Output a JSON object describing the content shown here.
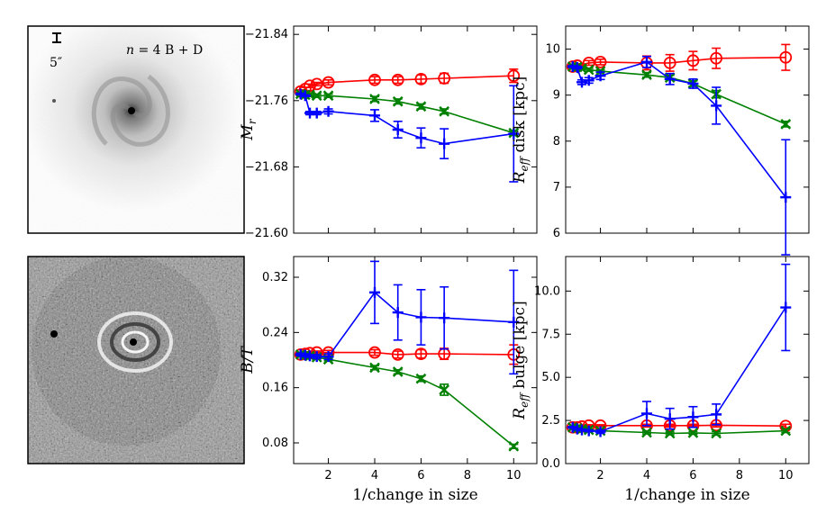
{
  "figure": {
    "image_top": {
      "model_label_prefix": "n",
      "model_label_suffix": " = 4 B + D",
      "scale_label": "5″"
    },
    "image_bottom": {}
  },
  "colors": {
    "red": "#ff0000",
    "green": "#008000",
    "blue": "#0000ff"
  },
  "chart_data": [
    {
      "id": "mr",
      "type": "line",
      "title": "",
      "xlabel": "",
      "ylabel": "M_r",
      "ylabel_base": "M",
      "ylabel_sub": "r",
      "ylabel_rest": "",
      "xlim": [
        0.5,
        11
      ],
      "ylim": [
        -21.6,
        -21.85
      ],
      "yticks": [
        -21.6,
        -21.68,
        -21.76,
        -21.84
      ],
      "ytick_labels": [
        "−21.60",
        "−21.68",
        "−21.76",
        "−21.84"
      ],
      "xticks": [
        2,
        4,
        6,
        8,
        10
      ],
      "xtick_labels": [
        "",
        "",
        "",
        "",
        ""
      ],
      "series": [
        {
          "name": "red",
          "marker": "circle",
          "color": "#ff0000",
          "x": [
            0.8,
            1.0,
            1.2,
            1.5,
            2,
            4,
            5,
            6,
            7,
            10
          ],
          "y": [
            -21.771,
            -21.774,
            -21.778,
            -21.78,
            -21.782,
            -21.785,
            -21.785,
            -21.786,
            -21.787,
            -21.79
          ],
          "err": [
            0.002,
            0.002,
            0.002,
            0.002,
            0.003,
            0.004,
            0.004,
            0.005,
            0.006,
            0.008
          ]
        },
        {
          "name": "green",
          "marker": "x",
          "color": "#008000",
          "x": [
            0.8,
            1.0,
            1.2,
            1.5,
            2,
            4,
            5,
            6,
            7,
            10
          ],
          "y": [
            -21.768,
            -21.767,
            -21.767,
            -21.766,
            -21.766,
            -21.762,
            -21.759,
            -21.753,
            -21.747,
            -21.721
          ],
          "err": [
            0.002,
            0.002,
            0.002,
            0.002,
            0.002,
            0.003,
            0.003,
            0.003,
            0.003,
            0.003
          ]
        },
        {
          "name": "blue",
          "marker": "plus",
          "color": "#0000ff",
          "x": [
            0.8,
            1.0,
            1.2,
            1.5,
            2,
            4,
            5,
            6,
            7,
            10
          ],
          "y": [
            -21.768,
            -21.766,
            -21.745,
            -21.745,
            -21.747,
            -21.742,
            -21.725,
            -21.715,
            -21.708,
            -21.72
          ],
          "err": [
            0.001,
            0.001,
            0.002,
            0.002,
            0.003,
            0.007,
            0.01,
            0.012,
            0.018,
            0.058
          ]
        }
      ]
    },
    {
      "id": "reff_disk",
      "type": "line",
      "title": "",
      "xlabel": "",
      "ylabel": "R_eff disk [kpc]",
      "ylabel_base": "R",
      "ylabel_sub": "eff",
      "ylabel_rest": " disk [kpc]",
      "xlim": [
        0.5,
        11
      ],
      "ylim": [
        6,
        10.5
      ],
      "yticks": [
        6,
        7,
        8,
        9,
        10
      ],
      "ytick_labels": [
        "6",
        "7",
        "8",
        "9",
        "10"
      ],
      "xticks": [
        2,
        4,
        6,
        8,
        10
      ],
      "xtick_labels": [
        "",
        "",
        "",
        "",
        ""
      ],
      "series": [
        {
          "name": "red",
          "marker": "circle",
          "color": "#ff0000",
          "x": [
            0.8,
            1.0,
            1.5,
            2,
            4,
            5,
            6,
            7,
            10
          ],
          "y": [
            9.62,
            9.64,
            9.7,
            9.72,
            9.7,
            9.7,
            9.75,
            9.8,
            9.82
          ],
          "err": [
            0.03,
            0.04,
            0.05,
            0.06,
            0.15,
            0.18,
            0.2,
            0.22,
            0.28
          ]
        },
        {
          "name": "green",
          "marker": "x",
          "color": "#008000",
          "x": [
            0.8,
            1.0,
            1.2,
            1.5,
            2,
            4,
            5,
            6,
            7,
            10
          ],
          "y": [
            9.62,
            9.61,
            9.58,
            9.55,
            9.52,
            9.44,
            9.38,
            9.25,
            9.02,
            8.37
          ],
          "err": [
            0.02,
            0.02,
            0.02,
            0.03,
            0.03,
            0.05,
            0.05,
            0.06,
            0.08,
            0.06
          ]
        },
        {
          "name": "blue",
          "marker": "plus",
          "color": "#0000ff",
          "x": [
            0.8,
            1.0,
            1.2,
            1.5,
            2,
            4,
            5,
            6,
            7,
            10
          ],
          "y": [
            9.62,
            9.6,
            9.28,
            9.32,
            9.42,
            9.72,
            9.35,
            9.25,
            8.77,
            6.78
          ],
          "err": [
            0.02,
            0.03,
            0.05,
            0.06,
            0.08,
            0.12,
            0.12,
            0.1,
            0.4,
            1.25
          ]
        }
      ]
    },
    {
      "id": "bt",
      "type": "line",
      "title": "",
      "xlabel": "1/change in size",
      "ylabel": "B/T",
      "ylabel_base": "B/T",
      "ylabel_sub": "",
      "ylabel_rest": "",
      "xlim": [
        0.5,
        11
      ],
      "ylim": [
        0.05,
        0.35
      ],
      "yticks": [
        0.08,
        0.16,
        0.24,
        0.32
      ],
      "ytick_labels": [
        "0.08",
        "0.16",
        "0.24",
        "0.32"
      ],
      "xticks": [
        2,
        4,
        6,
        8,
        10
      ],
      "xtick_labels": [
        "2",
        "4",
        "6",
        "8",
        "10"
      ],
      "series": [
        {
          "name": "red",
          "marker": "circle",
          "color": "#ff0000",
          "x": [
            0.8,
            1.0,
            1.2,
            1.5,
            2,
            4,
            5,
            6,
            7,
            10
          ],
          "y": [
            0.208,
            0.209,
            0.21,
            0.211,
            0.211,
            0.211,
            0.208,
            0.209,
            0.209,
            0.208
          ],
          "err": [
            0.002,
            0.002,
            0.002,
            0.002,
            0.003,
            0.004,
            0.005,
            0.006,
            0.008,
            0.014
          ]
        },
        {
          "name": "green",
          "marker": "x",
          "color": "#008000",
          "x": [
            0.8,
            1.0,
            1.2,
            1.5,
            2,
            4,
            5,
            6,
            7,
            10
          ],
          "y": [
            0.208,
            0.207,
            0.206,
            0.204,
            0.201,
            0.189,
            0.183,
            0.173,
            0.157,
            0.075
          ],
          "err": [
            0.002,
            0.002,
            0.002,
            0.002,
            0.002,
            0.003,
            0.003,
            0.004,
            0.008,
            0.003
          ]
        },
        {
          "name": "blue",
          "marker": "plus",
          "color": "#0000ff",
          "x": [
            0.8,
            1.0,
            1.2,
            1.5,
            2,
            4,
            5,
            6,
            7,
            10
          ],
          "y": [
            0.208,
            0.207,
            0.206,
            0.205,
            0.205,
            0.298,
            0.269,
            0.262,
            0.261,
            0.255
          ],
          "err": [
            0.002,
            0.002,
            0.002,
            0.003,
            0.004,
            0.045,
            0.04,
            0.04,
            0.045,
            0.075
          ]
        }
      ]
    },
    {
      "id": "reff_bulge",
      "type": "line",
      "title": "",
      "xlabel": "1/change in size",
      "ylabel": "R_eff bulge [kpc]",
      "ylabel_base": "R",
      "ylabel_sub": "eff",
      "ylabel_rest": " bulge [kpc]",
      "xlim": [
        0.5,
        11
      ],
      "ylim": [
        0,
        12
      ],
      "yticks": [
        0.0,
        2.5,
        5.0,
        7.5,
        10.0
      ],
      "ytick_labels": [
        "0.0",
        "2.5",
        "5.0",
        "7.5",
        "10.0"
      ],
      "xticks": [
        2,
        4,
        6,
        8,
        10
      ],
      "xtick_labels": [
        "2",
        "4",
        "6",
        "8",
        "10"
      ],
      "series": [
        {
          "name": "red",
          "marker": "circle",
          "color": "#ff0000",
          "x": [
            0.8,
            1.0,
            1.2,
            1.5,
            2,
            4,
            5,
            6,
            7,
            10
          ],
          "y": [
            2.1,
            2.1,
            2.15,
            2.2,
            2.2,
            2.2,
            2.2,
            2.2,
            2.22,
            2.18
          ],
          "err": [
            0.05,
            0.05,
            0.05,
            0.05,
            0.05,
            0.08,
            0.08,
            0.08,
            0.1,
            0.1
          ]
        },
        {
          "name": "green",
          "marker": "x",
          "color": "#008000",
          "x": [
            0.8,
            1.0,
            1.2,
            1.5,
            2,
            4,
            5,
            6,
            7,
            10
          ],
          "y": [
            2.1,
            2.05,
            2.0,
            1.95,
            1.9,
            1.8,
            1.75,
            1.78,
            1.75,
            1.9
          ],
          "err": [
            0.05,
            0.05,
            0.05,
            0.05,
            0.05,
            0.08,
            0.08,
            0.08,
            0.1,
            0.1
          ]
        },
        {
          "name": "blue",
          "marker": "plus",
          "color": "#0000ff",
          "x": [
            0.8,
            1.0,
            1.2,
            1.5,
            2,
            4,
            5,
            6,
            7,
            10
          ],
          "y": [
            2.1,
            2.0,
            1.95,
            1.9,
            1.85,
            2.9,
            2.6,
            2.7,
            2.85,
            9.05
          ],
          "err": [
            0.05,
            0.05,
            0.05,
            0.05,
            0.1,
            0.7,
            0.6,
            0.6,
            0.6,
            2.5
          ]
        }
      ]
    }
  ]
}
